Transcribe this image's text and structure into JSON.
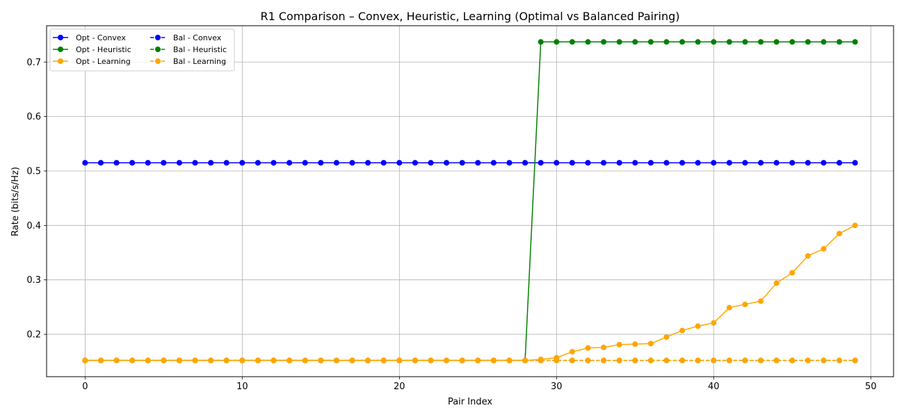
{
  "chart_data": {
    "type": "line",
    "title": "R1 Comparison – Convex, Heuristic, Learning (Optimal vs Balanced Pairing)",
    "xlabel": "Pair Index",
    "ylabel": "Rate (bits/s/Hz)",
    "xlim": [
      -2.45,
      51.45
    ],
    "ylim": [
      0.1222,
      0.7667
    ],
    "xticks": [
      0,
      10,
      20,
      30,
      40,
      50
    ],
    "yticks": [
      0.2,
      0.3,
      0.4,
      0.5,
      0.6,
      0.7
    ],
    "grid": true,
    "legend_position": "top-left",
    "x": [
      0,
      1,
      2,
      3,
      4,
      5,
      6,
      7,
      8,
      9,
      10,
      11,
      12,
      13,
      14,
      15,
      16,
      17,
      18,
      19,
      20,
      21,
      22,
      23,
      24,
      25,
      26,
      27,
      28,
      29,
      30,
      31,
      32,
      33,
      34,
      35,
      36,
      37,
      38,
      39,
      40,
      41,
      42,
      43,
      44,
      45,
      46,
      47,
      48,
      49
    ],
    "series": [
      {
        "name": "Opt - Convex",
        "color": "#0000ff",
        "linestyle": "solid",
        "values": [
          0.515,
          0.515,
          0.515,
          0.515,
          0.515,
          0.515,
          0.515,
          0.515,
          0.515,
          0.515,
          0.515,
          0.515,
          0.515,
          0.515,
          0.515,
          0.515,
          0.515,
          0.515,
          0.515,
          0.515,
          0.515,
          0.515,
          0.515,
          0.515,
          0.515,
          0.515,
          0.515,
          0.515,
          0.515,
          0.515,
          0.515,
          0.515,
          0.515,
          0.515,
          0.515,
          0.515,
          0.515,
          0.515,
          0.515,
          0.515,
          0.515,
          0.515,
          0.515,
          0.515,
          0.515,
          0.515,
          0.515,
          0.515,
          0.515,
          0.515
        ]
      },
      {
        "name": "Bal - Convex",
        "color": "#0000ff",
        "linestyle": "dashed",
        "values": [
          0.515,
          0.515,
          0.515,
          0.515,
          0.515,
          0.515,
          0.515,
          0.515,
          0.515,
          0.515,
          0.515,
          0.515,
          0.515,
          0.515,
          0.515,
          0.515,
          0.515,
          0.515,
          0.515,
          0.515,
          0.515,
          0.515,
          0.515,
          0.515,
          0.515,
          0.515,
          0.515,
          0.515,
          0.515,
          0.515,
          0.515,
          0.515,
          0.515,
          0.515,
          0.515,
          0.515,
          0.515,
          0.515,
          0.515,
          0.515,
          0.515,
          0.515,
          0.515,
          0.515,
          0.515,
          0.515,
          0.515,
          0.515,
          0.515,
          0.515
        ]
      },
      {
        "name": "Opt - Heuristic",
        "color": "#008000",
        "linestyle": "solid",
        "values": [
          0.152,
          0.152,
          0.152,
          0.152,
          0.152,
          0.152,
          0.152,
          0.152,
          0.152,
          0.152,
          0.152,
          0.152,
          0.152,
          0.152,
          0.152,
          0.152,
          0.152,
          0.152,
          0.152,
          0.152,
          0.152,
          0.152,
          0.152,
          0.152,
          0.152,
          0.152,
          0.152,
          0.152,
          0.152,
          0.737,
          0.737,
          0.737,
          0.737,
          0.737,
          0.737,
          0.737,
          0.737,
          0.737,
          0.737,
          0.737,
          0.737,
          0.737,
          0.737,
          0.737,
          0.737,
          0.737,
          0.737,
          0.737,
          0.737,
          0.737
        ]
      },
      {
        "name": "Bal - Heuristic",
        "color": "#008000",
        "linestyle": "dashed",
        "values": [
          0.152,
          0.152,
          0.152,
          0.152,
          0.152,
          0.152,
          0.152,
          0.152,
          0.152,
          0.152,
          0.152,
          0.152,
          0.152,
          0.152,
          0.152,
          0.152,
          0.152,
          0.152,
          0.152,
          0.152,
          0.152,
          0.152,
          0.152,
          0.152,
          0.152,
          0.152,
          0.152,
          0.152,
          0.152,
          0.152,
          0.152,
          0.152,
          0.152,
          0.152,
          0.152,
          0.152,
          0.152,
          0.152,
          0.152,
          0.152,
          0.152,
          0.152,
          0.152,
          0.152,
          0.152,
          0.152,
          0.152,
          0.152,
          0.152,
          0.152
        ]
      },
      {
        "name": "Opt - Learning",
        "color": "#ffa500",
        "linestyle": "solid",
        "values": [
          0.152,
          0.152,
          0.152,
          0.152,
          0.152,
          0.152,
          0.152,
          0.152,
          0.152,
          0.152,
          0.152,
          0.152,
          0.152,
          0.152,
          0.152,
          0.152,
          0.152,
          0.152,
          0.152,
          0.152,
          0.152,
          0.152,
          0.152,
          0.152,
          0.152,
          0.152,
          0.152,
          0.152,
          0.152,
          0.154,
          0.157,
          0.168,
          0.175,
          0.176,
          0.181,
          0.182,
          0.183,
          0.195,
          0.207,
          0.215,
          0.221,
          0.249,
          0.255,
          0.261,
          0.294,
          0.313,
          0.344,
          0.357,
          0.385,
          0.4
        ]
      },
      {
        "name": "Bal - Learning",
        "color": "#ffa500",
        "linestyle": "dashed",
        "values": [
          0.152,
          0.152,
          0.152,
          0.152,
          0.152,
          0.152,
          0.152,
          0.152,
          0.152,
          0.152,
          0.152,
          0.152,
          0.152,
          0.152,
          0.152,
          0.152,
          0.152,
          0.152,
          0.152,
          0.152,
          0.152,
          0.152,
          0.152,
          0.152,
          0.152,
          0.152,
          0.152,
          0.152,
          0.152,
          0.152,
          0.152,
          0.152,
          0.152,
          0.152,
          0.152,
          0.152,
          0.152,
          0.152,
          0.152,
          0.152,
          0.152,
          0.152,
          0.152,
          0.152,
          0.152,
          0.152,
          0.152,
          0.152,
          0.152,
          0.152
        ]
      }
    ]
  }
}
